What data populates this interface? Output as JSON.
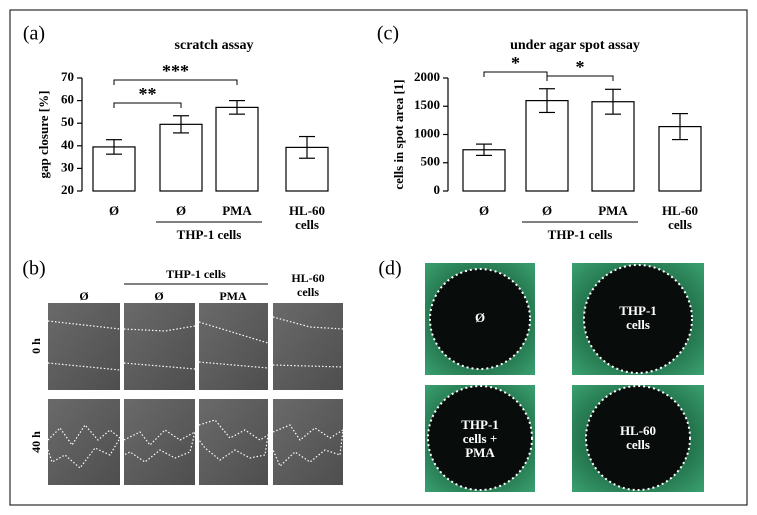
{
  "chart_data": [
    {
      "type": "bar",
      "panel": "(a)",
      "title": "scratch assay",
      "y_label": "gap closure [%]",
      "categories": [
        "Ø",
        "Ø",
        "PMA",
        "HL-60 cells"
      ],
      "group_label": "THP-1 cells",
      "values": [
        39.5,
        49.5,
        57,
        39.3
      ],
      "errors": [
        3.2,
        3.8,
        3,
        4.8
      ],
      "significance": [
        "**",
        "***"
      ],
      "ylim": [
        20,
        70
      ],
      "yticks": [
        20,
        30,
        40,
        50,
        60,
        70
      ],
      "color": "#ffffff"
    },
    {
      "type": "bar",
      "panel": "(c)",
      "title": "under agar spot assay",
      "y_label": "cells in spot area [1]",
      "categories": [
        "Ø",
        "Ø",
        "PMA",
        "HL-60 cells"
      ],
      "group_label": "THP-1 cells",
      "values": [
        730,
        1600,
        1580,
        1140
      ],
      "errors": [
        100,
        210,
        220,
        230
      ],
      "significance": [
        "*",
        "*"
      ],
      "ylim": [
        0,
        2000
      ],
      "yticks": [
        0,
        500,
        1000,
        1500,
        2000
      ],
      "color": "#ffffff"
    }
  ],
  "panels": {
    "b": {
      "label": "(b)",
      "group": "THP-1 cells",
      "columns": [
        "Ø",
        "Ø",
        "PMA",
        "HL-60 cells"
      ],
      "rows": [
        "0 h",
        "40 h"
      ]
    },
    "d": {
      "label": "(d)",
      "images": [
        "Ø",
        "THP-1 cells",
        "THP-1 cells + PMA",
        "HL-60 cells"
      ]
    }
  }
}
